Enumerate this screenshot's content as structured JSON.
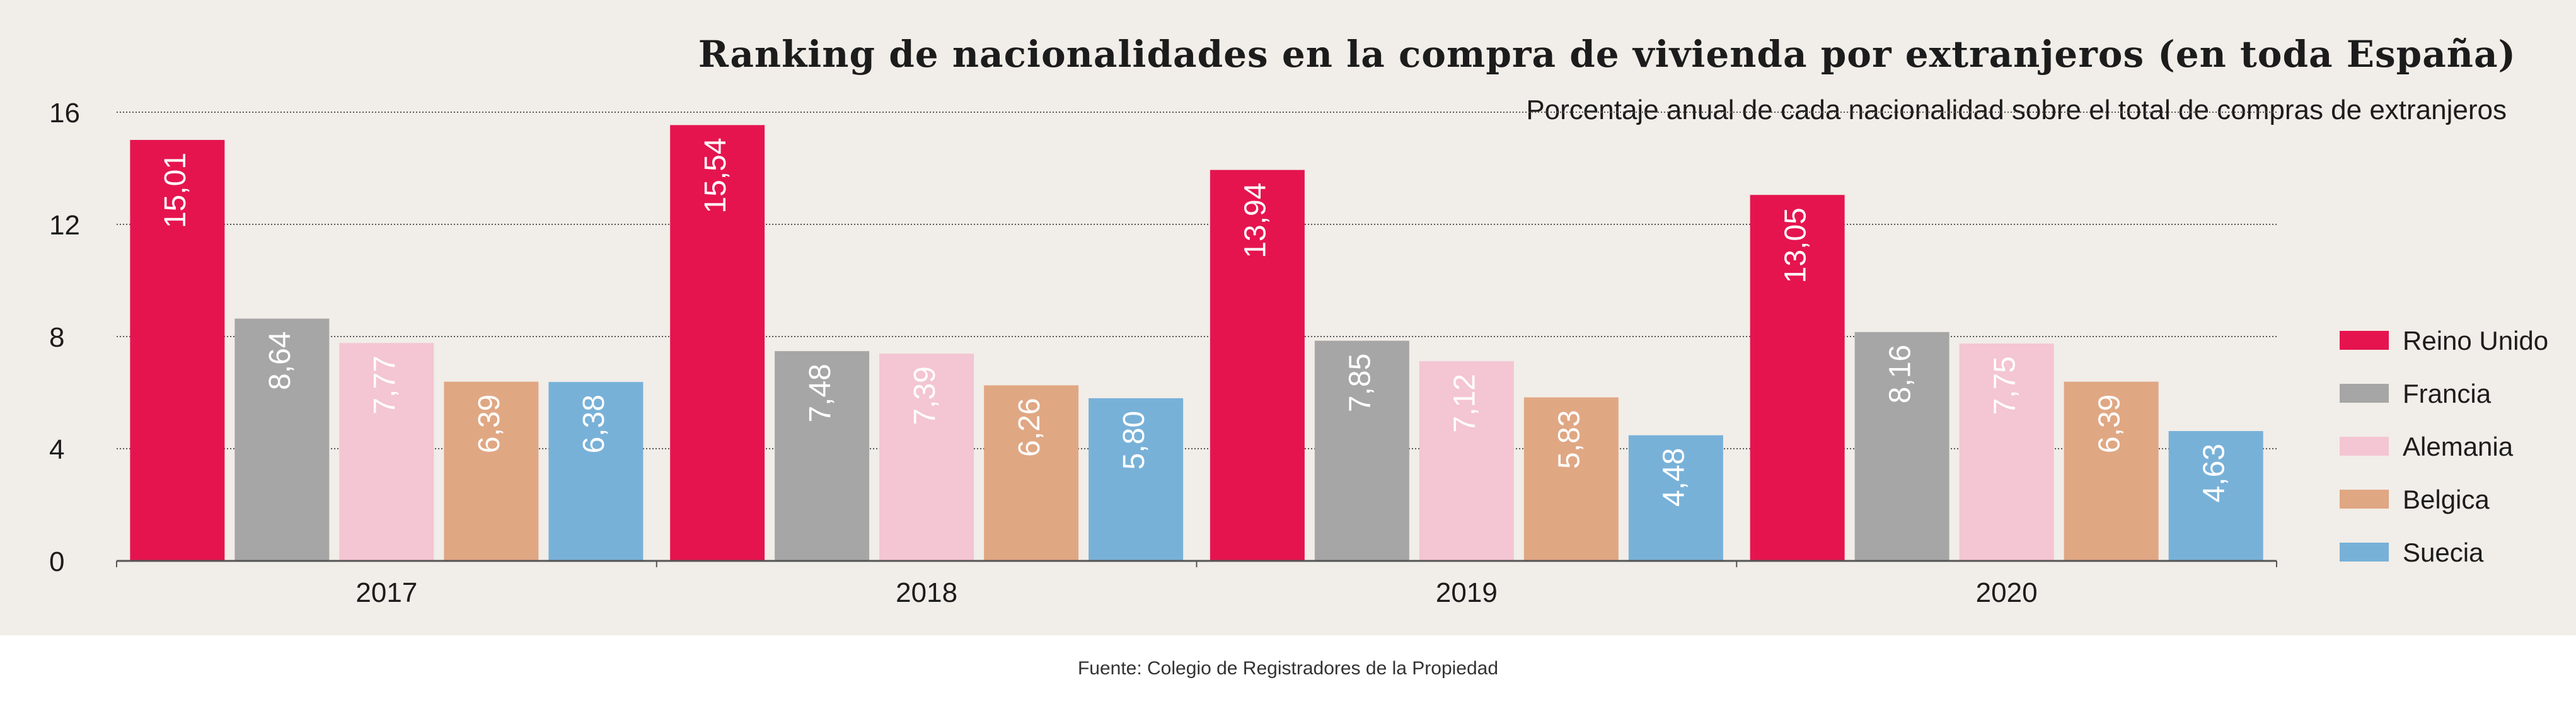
{
  "chart_data": {
    "type": "bar",
    "title": "Ranking de nacionalidades en la compra de vivienda por extranjeros (en toda España)",
    "subtitle": "Porcentaje anual de cada nacionalidad sobre el total de compras de extranjeros",
    "categories": [
      "2017",
      "2018",
      "2019",
      "2020"
    ],
    "series": [
      {
        "name": "Reino Unido",
        "color": "#e5144f",
        "values": [
          15.01,
          15.54,
          13.94,
          13.05
        ],
        "labels": [
          "15,01",
          "15,54",
          "13,94",
          "13,05"
        ]
      },
      {
        "name": "Francia",
        "color": "#a6a6a6",
        "values": [
          8.64,
          7.48,
          7.85,
          8.16
        ],
        "labels": [
          "8,64",
          "7,48",
          "7,85",
          "8,16"
        ]
      },
      {
        "name": "Alemania",
        "color": "#f4c5d3",
        "values": [
          7.77,
          7.39,
          7.12,
          7.75
        ],
        "labels": [
          "7,77",
          "7,39",
          "7,12",
          "7,75"
        ]
      },
      {
        "name": "Belgica",
        "color": "#e0a783",
        "values": [
          6.39,
          6.26,
          5.83,
          6.39
        ],
        "labels": [
          "6,39",
          "6,26",
          "5,83",
          "6,39"
        ]
      },
      {
        "name": "Suecia",
        "color": "#78b1d8",
        "values": [
          6.38,
          5.8,
          4.48,
          4.63
        ],
        "labels": [
          "6,38",
          "5,80",
          "4,48",
          "4,63"
        ]
      }
    ],
    "yticks": [
      "0",
      "4",
      "8",
      "12",
      "16"
    ],
    "ylim": [
      0,
      16
    ],
    "xlabel": "",
    "ylabel": "",
    "grid": true,
    "legend_position": "right",
    "source": "Fuente: Colegio de Registradores de la Propiedad"
  }
}
